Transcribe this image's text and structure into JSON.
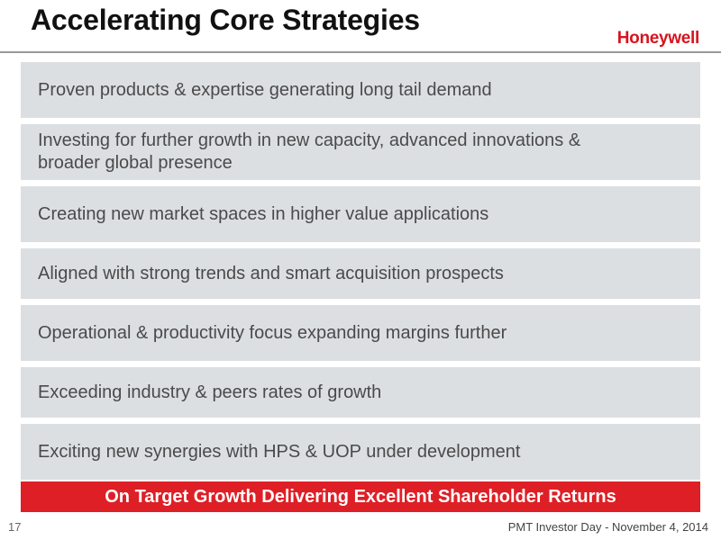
{
  "slide": {
    "title": "Accelerating Core Strategies",
    "logo_text": "Honeywell",
    "items": [
      "Proven products & expertise generating long tail demand",
      "Investing for further growth in new capacity, advanced innovations & broader global presence",
      "Creating new market spaces in higher value applications",
      "Aligned with strong trends and smart acquisition prospects",
      "Operational & productivity focus expanding margins further",
      "Exceeding industry & peers rates of growth",
      "Exciting new synergies with HPS & UOP under development"
    ],
    "banner": "On Target Growth Delivering Excellent Shareholder Returns",
    "page_number": "17",
    "footer": "PMT Investor Day - November 4, 2014"
  },
  "colors": {
    "title": "#111111",
    "logo": "#d7141e",
    "item_background": "#dcdfe2",
    "item_text": "#4a4a4a",
    "banner_background": "#de1f26",
    "banner_text": "#ffffff"
  }
}
